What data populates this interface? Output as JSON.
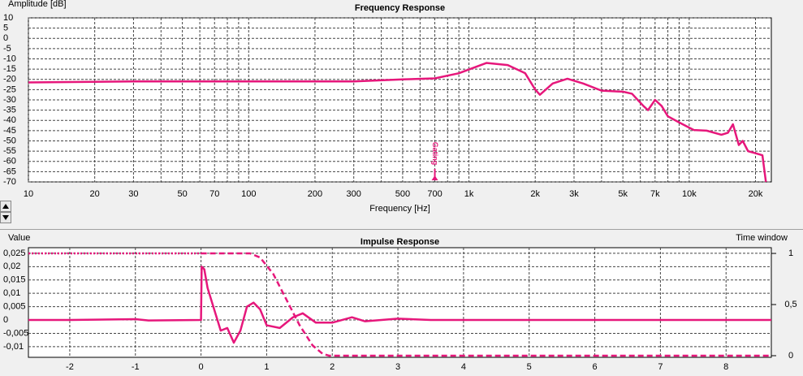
{
  "chart_data": [
    {
      "type": "line",
      "title": "Frequency Response",
      "y_label": "Amplitude [dB]",
      "x_label": "Frequency [Hz]",
      "log_x": true,
      "grid": true,
      "color": "#e6177b",
      "xlim": [
        10,
        23600
      ],
      "ylim": [
        -70,
        10
      ],
      "xticks": [
        10,
        20,
        30,
        50,
        70,
        100,
        200,
        300,
        500,
        700,
        {
          "value": 1000,
          "label": "1k"
        },
        {
          "value": 2000,
          "label": "2k"
        },
        {
          "value": 3000,
          "label": "3k"
        },
        {
          "value": 5000,
          "label": "5k"
        },
        {
          "value": 7000,
          "label": "7k"
        },
        {
          "value": 10000,
          "label": "10k"
        },
        {
          "value": 20000,
          "label": "20k"
        }
      ],
      "minor_xticks": [
        40,
        60,
        80,
        90,
        400,
        600,
        800,
        900,
        4000,
        6000,
        8000,
        9000
      ],
      "yticks": [
        10,
        5,
        0,
        -5,
        -10,
        -15,
        -20,
        -25,
        -30,
        -35,
        -40,
        -45,
        -50,
        -55,
        -60,
        -65,
        -70
      ],
      "annotation": {
        "text": "Gating",
        "x": 700
      },
      "x": [
        10,
        30,
        100,
        300,
        500,
        700,
        900,
        1200,
        1500,
        1800,
        2000,
        2100,
        2400,
        2800,
        3300,
        4000,
        5000,
        5500,
        6200,
        6500,
        7000,
        7500,
        8000,
        9000,
        10500,
        12000,
        14000,
        15000,
        15800,
        16800,
        17500,
        18500,
        20000,
        21500,
        22300
      ],
      "values": [
        -21.5,
        -21,
        -21,
        -21,
        -20,
        -19.5,
        -17,
        -12,
        -13,
        -17,
        -25,
        -27.5,
        -22,
        -19.7,
        -22,
        -25.5,
        -26,
        -27,
        -33,
        -35,
        -30,
        -33,
        -38,
        -41,
        -44.7,
        -45,
        -47,
        -46,
        -41.9,
        -52,
        -50,
        -55,
        -56,
        -57,
        -70
      ]
    },
    {
      "type": "line",
      "title": "Impulse Response",
      "y_label": "Value",
      "y2_label": "Time window",
      "grid": true,
      "xlim": [
        -2.63,
        8.69
      ],
      "ylim": [
        -0.014,
        0.0271
      ],
      "y2lim": [
        -0.016,
        1.056
      ],
      "xticks": [
        -2,
        -1,
        0,
        1,
        2,
        3,
        4,
        5,
        6,
        7,
        8
      ],
      "yticks": [
        {
          "value": 0.025,
          "label": "0,025"
        },
        {
          "value": 0.02,
          "label": "0,02"
        },
        {
          "value": 0.015,
          "label": "0,015"
        },
        {
          "value": 0.01,
          "label": "0,01"
        },
        {
          "value": 0.005,
          "label": "0,005"
        },
        0,
        {
          "value": -0.005,
          "label": "-0,005"
        },
        {
          "value": -0.01,
          "label": "-0,01"
        }
      ],
      "y2ticks": [
        1,
        {
          "value": 0.5,
          "label": "0,5"
        },
        0
      ],
      "series": [
        {
          "color": "#e6177b",
          "style": "solid",
          "x": [
            -2.63,
            -2,
            -1,
            -0.8,
            0,
            0.01,
            0.05,
            0.1,
            0.2,
            0.3,
            0.4,
            0.5,
            0.6,
            0.7,
            0.8,
            0.9,
            1.0,
            1.2,
            1.4,
            1.55,
            1.75,
            2.0,
            2.3,
            2.5,
            3,
            3.5,
            4,
            5,
            6,
            7,
            8,
            8.69
          ],
          "values": [
            0,
            0,
            0.0003,
            -0.0002,
            0,
            0.02,
            0.019,
            0.012,
            0.004,
            -0.004,
            -0.003,
            -0.0085,
            -0.004,
            0.005,
            0.0065,
            0.004,
            -0.002,
            -0.003,
            0.001,
            0.0025,
            -0.001,
            -0.001,
            0.001,
            -0.0005,
            0.0005,
            0,
            0,
            0,
            0,
            0,
            0,
            0
          ]
        },
        {
          "color": "#e6177b",
          "style": "dotted",
          "axis": "y2",
          "x": [
            -2.63,
            0
          ],
          "values": [
            1,
            1
          ]
        },
        {
          "color": "#e6177b",
          "style": "dashed",
          "axis": "y2",
          "x": [
            0,
            0.75,
            0.9,
            1.1,
            1.3,
            1.5,
            1.7,
            1.85,
            1.95,
            8.69
          ],
          "values": [
            1,
            1,
            0.96,
            0.8,
            0.55,
            0.3,
            0.1,
            0.02,
            0,
            0
          ]
        }
      ]
    }
  ]
}
